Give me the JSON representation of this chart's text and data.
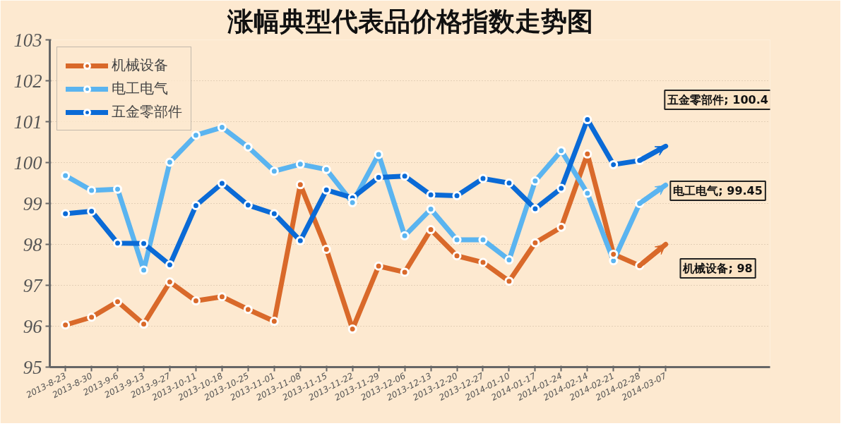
{
  "chart_data": {
    "type": "line",
    "title": "涨幅典型代表品价格指数走势图",
    "categories": [
      "2013-8-23",
      "2013-8-30",
      "2013-9-6",
      "2013-9-13",
      "2013-9-27",
      "2013-10-11",
      "2013-10-18",
      "2013-10-25",
      "2013-11-01",
      "2013-11-08",
      "2013-11-15",
      "2013-11-22",
      "2013-11-29",
      "2013-12-06",
      "2013-12-13",
      "2013-12-20",
      "2013-12-27",
      "2014-01-10",
      "2014-01-17",
      "2014-01-24",
      "2014-02-14",
      "2014-02-21",
      "2014-02-28",
      "2014-03-07"
    ],
    "series": [
      {
        "name": "机械设备",
        "color": "#d9692a",
        "values": [
          96.03,
          96.22,
          96.6,
          96.05,
          97.08,
          96.62,
          96.72,
          96.41,
          96.12,
          99.46,
          97.88,
          95.93,
          97.47,
          97.32,
          98.36,
          97.72,
          97.56,
          97.1,
          98.04,
          98.42,
          100.21,
          97.76,
          97.48,
          98
        ]
      },
      {
        "name": "电工电气",
        "color": "#5ab4f0",
        "values": [
          99.68,
          99.32,
          99.35,
          97.37,
          100.01,
          100.67,
          100.86,
          100.38,
          99.79,
          99.96,
          99.83,
          99.02,
          100.2,
          98.21,
          98.86,
          98.11,
          98.11,
          97.62,
          99.55,
          100.29,
          99.25,
          97.6,
          99.0,
          99.45
        ]
      },
      {
        "name": "五金零部件",
        "color": "#0a6ad6",
        "values": [
          98.75,
          98.81,
          98.03,
          98.02,
          97.5,
          98.95,
          99.49,
          98.96,
          98.75,
          98.09,
          99.33,
          99.14,
          99.64,
          99.67,
          99.21,
          99.19,
          99.61,
          99.5,
          98.87,
          99.37,
          101.05,
          99.95,
          100.05,
          100.4
        ]
      }
    ],
    "ylim": [
      95,
      103
    ],
    "yticks": [
      95,
      96,
      97,
      98,
      99,
      100,
      101,
      102,
      103
    ],
    "grid": "y",
    "legend": "top left",
    "marker": "circle",
    "line_style": "solid",
    "annotations": [
      "五金零部件; 100.4",
      "电工电气; 99.45",
      "机械设备; 98"
    ]
  }
}
